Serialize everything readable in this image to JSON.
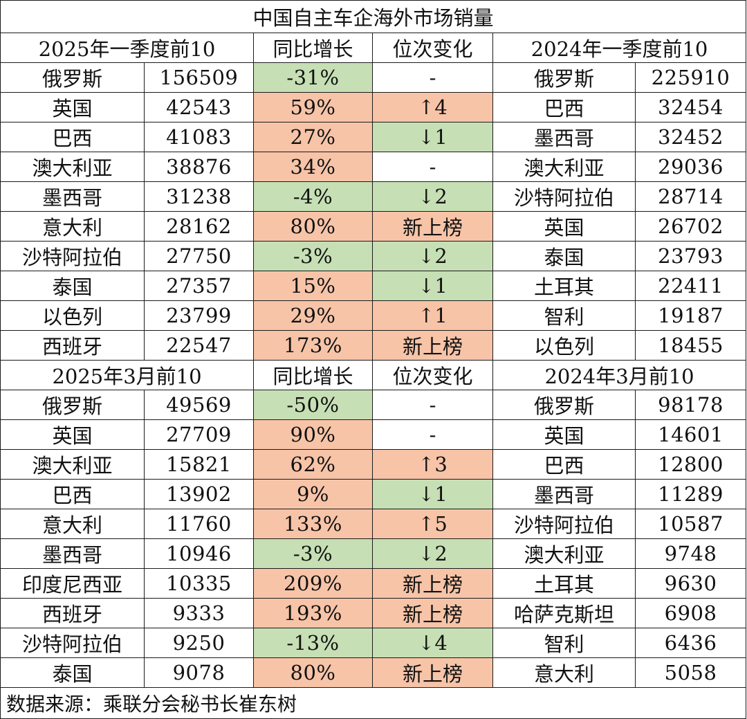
{
  "title": "中国自主车企海外市场销量",
  "colors": {
    "increase": "#f7c4a8",
    "decrease": "#c6dfb4"
  },
  "sections": [
    {
      "header": {
        "left": "2025年一季度前10",
        "growth": "同比增长",
        "rank_change": "位次变化",
        "right": "2024年一季度前10"
      },
      "rows": [
        {
          "country": "俄罗斯",
          "sales": "156509",
          "growth": "-31%",
          "growth_color": "green",
          "change": "-",
          "change_color": "",
          "prev_country": "俄罗斯",
          "prev_sales": "225910"
        },
        {
          "country": "英国",
          "sales": "42543",
          "growth": "59%",
          "growth_color": "orange",
          "change": "↑4",
          "change_color": "orange",
          "prev_country": "巴西",
          "prev_sales": "32454"
        },
        {
          "country": "巴西",
          "sales": "41083",
          "growth": "27%",
          "growth_color": "orange",
          "change": "↓1",
          "change_color": "green",
          "prev_country": "墨西哥",
          "prev_sales": "32452"
        },
        {
          "country": "澳大利亚",
          "sales": "38876",
          "growth": "34%",
          "growth_color": "orange",
          "change": "-",
          "change_color": "",
          "prev_country": "澳大利亚",
          "prev_sales": "29036"
        },
        {
          "country": "墨西哥",
          "sales": "31238",
          "growth": "-4%",
          "growth_color": "green",
          "change": "↓2",
          "change_color": "green",
          "prev_country": "沙特阿拉伯",
          "prev_sales": "28714"
        },
        {
          "country": "意大利",
          "sales": "28162",
          "growth": "80%",
          "growth_color": "orange",
          "change": "新上榜",
          "change_color": "orange",
          "prev_country": "英国",
          "prev_sales": "26702"
        },
        {
          "country": "沙特阿拉伯",
          "sales": "27750",
          "growth": "-3%",
          "growth_color": "green",
          "change": "↓2",
          "change_color": "green",
          "prev_country": "泰国",
          "prev_sales": "23793"
        },
        {
          "country": "泰国",
          "sales": "27357",
          "growth": "15%",
          "growth_color": "orange",
          "change": "↓1",
          "change_color": "green",
          "prev_country": "土耳其",
          "prev_sales": "22411"
        },
        {
          "country": "以色列",
          "sales": "23799",
          "growth": "29%",
          "growth_color": "orange",
          "change": "↑1",
          "change_color": "orange",
          "prev_country": "智利",
          "prev_sales": "19187"
        },
        {
          "country": "西班牙",
          "sales": "22547",
          "growth": "173%",
          "growth_color": "orange",
          "change": "新上榜",
          "change_color": "orange",
          "prev_country": "以色列",
          "prev_sales": "18455"
        }
      ]
    },
    {
      "header": {
        "left": "2025年3月前10",
        "growth": "同比增长",
        "rank_change": "位次变化",
        "right": "2024年3月前10"
      },
      "rows": [
        {
          "country": "俄罗斯",
          "sales": "49569",
          "growth": "-50%",
          "growth_color": "green",
          "change": "-",
          "change_color": "",
          "prev_country": "俄罗斯",
          "prev_sales": "98178"
        },
        {
          "country": "英国",
          "sales": "27709",
          "growth": "90%",
          "growth_color": "orange",
          "change": "-",
          "change_color": "",
          "prev_country": "英国",
          "prev_sales": "14601"
        },
        {
          "country": "澳大利亚",
          "sales": "15821",
          "growth": "62%",
          "growth_color": "orange",
          "change": "↑3",
          "change_color": "orange",
          "prev_country": "巴西",
          "prev_sales": "12800"
        },
        {
          "country": "巴西",
          "sales": "13902",
          "growth": "9%",
          "growth_color": "orange",
          "change": "↓1",
          "change_color": "green",
          "prev_country": "墨西哥",
          "prev_sales": "11289"
        },
        {
          "country": "意大利",
          "sales": "11760",
          "growth": "133%",
          "growth_color": "orange",
          "change": "↑5",
          "change_color": "orange",
          "prev_country": "沙特阿拉伯",
          "prev_sales": "10587"
        },
        {
          "country": "墨西哥",
          "sales": "10946",
          "growth": "-3%",
          "growth_color": "green",
          "change": "↓2",
          "change_color": "green",
          "prev_country": "澳大利亚",
          "prev_sales": "9748"
        },
        {
          "country": "印度尼西亚",
          "sales": "10335",
          "growth": "209%",
          "growth_color": "orange",
          "change": "新上榜",
          "change_color": "orange",
          "prev_country": "土耳其",
          "prev_sales": "9630"
        },
        {
          "country": "西班牙",
          "sales": "9333",
          "growth": "193%",
          "growth_color": "orange",
          "change": "新上榜",
          "change_color": "orange",
          "prev_country": "哈萨克斯坦",
          "prev_sales": "6908"
        },
        {
          "country": "沙特阿拉伯",
          "sales": "9250",
          "growth": "-13%",
          "growth_color": "green",
          "change": "↓4",
          "change_color": "green",
          "prev_country": "智利",
          "prev_sales": "6436"
        },
        {
          "country": "泰国",
          "sales": "9078",
          "growth": "80%",
          "growth_color": "orange",
          "change": "新上榜",
          "change_color": "orange",
          "prev_country": "意大利",
          "prev_sales": "5058"
        }
      ]
    }
  ],
  "source": "数据来源：乘联分会秘书长崔东树"
}
